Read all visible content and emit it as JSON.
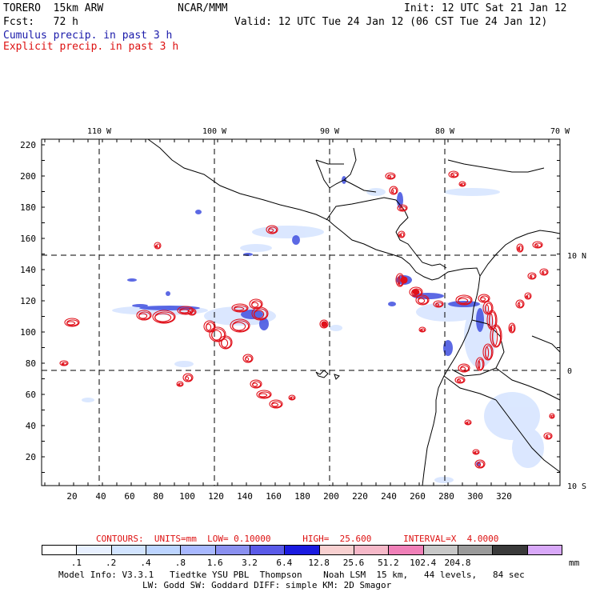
{
  "header": {
    "model": "TORERO  15km ARW",
    "org": "NCAR/MMM",
    "init": "Init: 12 UTC Sat 21 Jan 12",
    "fcst": "Fcst:   72 h",
    "valid": "Valid: 12 UTC Tue 24 Jan 12 (06 CST Tue 24 Jan 12)",
    "line1": "Cumulus precip. in past 3 h",
    "line2": "Explicit precip. in past 3 h"
  },
  "colors": {
    "cumulus": "#1a1aaa",
    "explicit": "#dd1111",
    "contour_red": "#e0101a",
    "coast": "#000000"
  },
  "axes": {
    "lon_labels": [
      "110 W",
      "100 W",
      "90 W",
      "80 W",
      "70 W"
    ],
    "lat_labels": [
      "10 N",
      "0",
      "10 S"
    ],
    "y_ticks": [
      "220",
      "200",
      "180",
      "160",
      "140",
      "120",
      "100",
      "80",
      "60",
      "40",
      "20"
    ],
    "x_ticks": [
      "20",
      "40",
      "60",
      "80",
      "100",
      "120",
      "140",
      "160",
      "180",
      "200",
      "220",
      "240",
      "260",
      "280",
      "300",
      "320"
    ]
  },
  "contours": "CONTOURS:  UNITS=mm  LOW= 0.10000      HIGH=  25.600      INTERVAL=X  4.0000",
  "legend": {
    "boxes": [
      {
        "color": "#ffffff"
      },
      {
        "color": "#e8f0ff"
      },
      {
        "color": "#d2e4ff"
      },
      {
        "color": "#bcd4ff"
      },
      {
        "color": "#a8b8ff"
      },
      {
        "color": "#8a90f0"
      },
      {
        "color": "#5a5ae8"
      },
      {
        "color": "#1a1ae0"
      },
      {
        "color": "#f8d0d0"
      },
      {
        "color": "#f6b8c8"
      },
      {
        "color": "#f080b8"
      },
      {
        "color": "#c8c8c8"
      },
      {
        "color": "#9a9a9a"
      },
      {
        "color": "#3a3a3a"
      },
      {
        "color": "#d8a8f8"
      }
    ],
    "labels": [
      ".1",
      ".2",
      ".4",
      ".8",
      "1.6",
      "3.2",
      "6.4",
      "12.8",
      "25.6",
      "51.2",
      "102.4",
      "204.8"
    ],
    "unit": "mm"
  },
  "footer": {
    "line1": "Model Info: V3.3.1   Tiedtke YSU PBL  Thompson    Noah LSM  15 km,   44 levels,   84 sec",
    "line2": "LW: Godd SW: Goddard DIFF: simple KM: 2D Smagor"
  }
}
